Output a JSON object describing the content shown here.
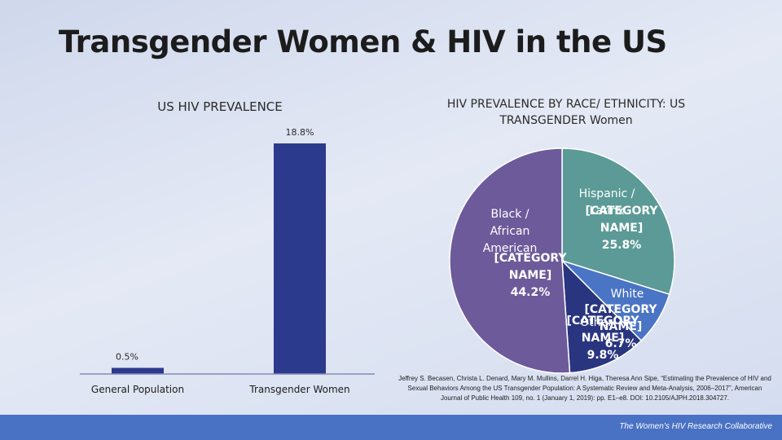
{
  "slide": {
    "title": "Transgender Women & HIV in the US",
    "citation": "Jeffrey S. Becasen, Christa L. Denard, Mary M. Mullins, Darrel H. Higa, Theresa Ann Sipe, “Estimating the Prevalence of HIV and Sexual Behaviors Among the US Transgender Population: A Systematic Review and Meta-Analysis, 2006–2017”, American Journal of Public Health 109, no. 1 (January 1, 2019): pp. E1–e8. DOI: 10.2105/AJPH.2018.304727.",
    "footer": "The Women’s HIV Research Collaborative"
  },
  "chart_data": [
    {
      "type": "bar",
      "title": "US HIV PREVALENCE",
      "categories": [
        "General Population",
        "Transgender Women"
      ],
      "values": [
        0.5,
        18.8
      ],
      "data_labels": [
        "0.5%",
        "18.8%"
      ],
      "ylim": [
        0,
        18.8
      ],
      "grid": false,
      "color": "#2b3a8c"
    },
    {
      "type": "pie",
      "title": "HIV PREVALENCE BY RACE/ ETHNICITY: US TRANSGENDER Women",
      "slices": [
        {
          "label": "Hispanic / Latinx",
          "value": 25.8,
          "value_label": "[CATEGORY NAME] 25.8%",
          "color": "#5b9a96"
        },
        {
          "label": "White",
          "value": 6.7,
          "value_label": "[CATEGORY NAME] 6.7%",
          "color": "#4a74c4"
        },
        {
          "label": "Other",
          "value": 9.8,
          "value_label": "[CATEGORY NAME] 9.8%",
          "color": "#2a3580"
        },
        {
          "label": "Black / African American",
          "value": 44.2,
          "value_label": "[CATEGORY NAME] 44.2%",
          "color": "#6d5a9a"
        }
      ]
    }
  ]
}
